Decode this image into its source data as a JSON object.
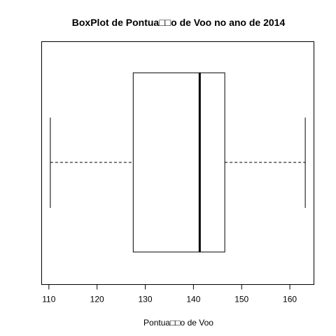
{
  "chart_data": {
    "type": "boxplot",
    "orientation": "horizontal",
    "title": "BoxPlot de Pontua□□o de Voo no ano de 2014",
    "xlabel": "Pontua□□o de Voo",
    "ylabel": "",
    "xlim": [
      108.5,
      165
    ],
    "xticks": [
      110,
      120,
      130,
      140,
      150,
      160
    ],
    "tick_labels": [
      "110",
      "120",
      "130",
      "140",
      "150",
      "160"
    ],
    "stats": {
      "min": 110.3,
      "q1": 127.5,
      "median": 141.3,
      "q3": 146.5,
      "max": 163.2
    },
    "grid": false,
    "legend": "none",
    "colors": {
      "box_fill": "#ffffff",
      "stroke": "#000000",
      "background": "#ffffff"
    }
  }
}
